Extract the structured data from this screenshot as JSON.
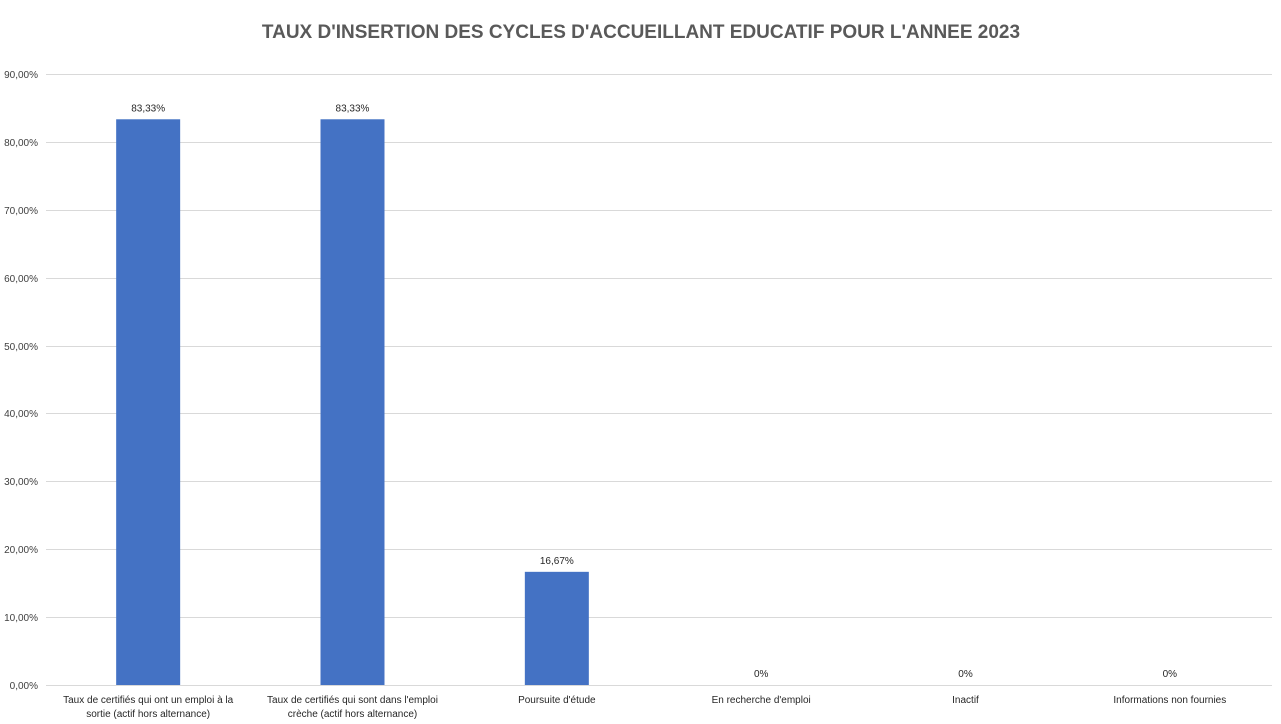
{
  "chart_data": {
    "type": "bar",
    "title": "TAUX D'INSERTION DES CYCLES D'ACCUEILLANT EDUCATIF POUR L'ANNEE 2023",
    "categories": [
      [
        "Taux de certifiés qui ont un emploi à la",
        "sortie (actif hors alternance)"
      ],
      [
        "Taux de certifiés qui sont dans l'emploi",
        "crèche (actif hors alternance)"
      ],
      [
        "Poursuite d'étude"
      ],
      [
        "En recherche d'emploi"
      ],
      [
        "Inactif"
      ],
      [
        "Informations non fournies"
      ]
    ],
    "values": [
      83.33,
      83.33,
      16.67,
      0,
      0,
      0
    ],
    "data_labels": [
      "83,33%",
      "83,33%",
      "16,67%",
      "0%",
      "0%",
      "0%"
    ],
    "ylim": [
      0,
      90
    ],
    "yticks": [
      0,
      10,
      20,
      30,
      40,
      50,
      60,
      70,
      80,
      90
    ],
    "ytick_labels": [
      "0,00%",
      "10,00%",
      "20,00%",
      "30,00%",
      "40,00%",
      "50,00%",
      "60,00%",
      "70,00%",
      "80,00%",
      "90,00%"
    ],
    "grid": true,
    "legend": "none",
    "bar_color": "#4472c4"
  }
}
